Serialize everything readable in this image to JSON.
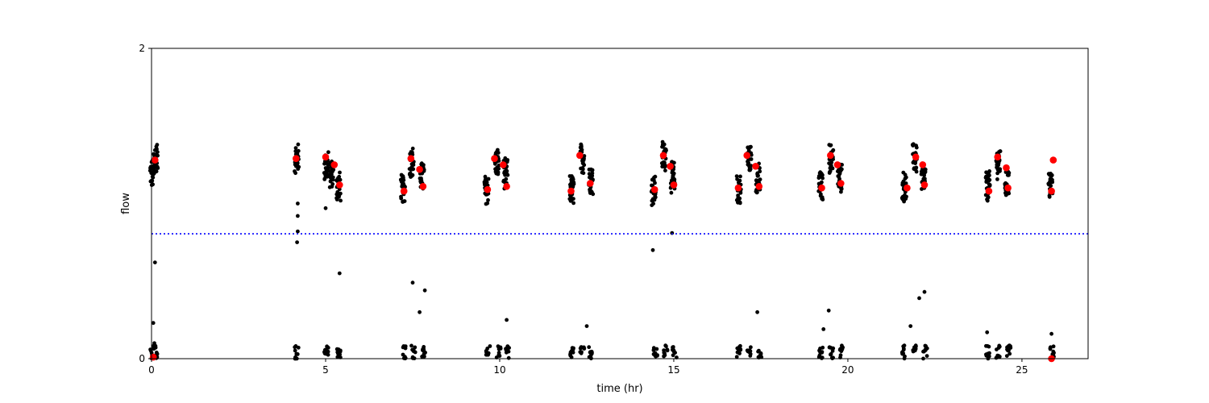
{
  "chart_data": {
    "type": "scatter",
    "title": "",
    "xlabel": "time (hr)",
    "ylabel": "flow",
    "xlim": [
      0,
      26.9
    ],
    "ylim": [
      0,
      2
    ],
    "x_ticks": [
      0,
      5,
      10,
      15,
      20,
      25
    ],
    "y_ticks": [
      0,
      2
    ],
    "grid": false,
    "threshold_line": {
      "y": 0.805,
      "color": "#0000ff",
      "style": "dotted"
    },
    "colors": {
      "samples": "#000000",
      "means": "#ff0000"
    },
    "series": [
      {
        "role": "samples",
        "bursts": [
          [
            0.0,
            1.2
          ],
          [
            0.1,
            1.3
          ],
          [
            4.15,
            1.3
          ],
          [
            5.0,
            1.25
          ],
          [
            5.15,
            1.2
          ],
          [
            5.35,
            1.12
          ],
          [
            7.2,
            1.1
          ],
          [
            7.45,
            1.28
          ],
          [
            7.75,
            1.18
          ],
          [
            9.6,
            1.1
          ],
          [
            9.9,
            1.27
          ],
          [
            10.15,
            1.2
          ],
          [
            12.05,
            1.1
          ],
          [
            12.35,
            1.3
          ],
          [
            12.6,
            1.17
          ],
          [
            14.4,
            1.1
          ],
          [
            14.7,
            1.32
          ],
          [
            14.95,
            1.18
          ],
          [
            16.85,
            1.1
          ],
          [
            17.15,
            1.3
          ],
          [
            17.4,
            1.17
          ],
          [
            19.2,
            1.12
          ],
          [
            19.5,
            1.3
          ],
          [
            19.75,
            1.18
          ],
          [
            21.6,
            1.12
          ],
          [
            21.9,
            1.3
          ],
          [
            22.15,
            1.17
          ],
          [
            24.0,
            1.12
          ],
          [
            24.3,
            1.27
          ],
          [
            24.55,
            1.15
          ],
          [
            25.8,
            1.13
          ]
        ],
        "low_clusters": [
          0.0,
          0.1,
          4.15,
          5.0,
          5.35,
          7.25,
          7.5,
          7.8,
          9.65,
          9.95,
          10.2,
          12.05,
          12.35,
          12.6,
          14.45,
          14.75,
          15.0,
          16.85,
          17.15,
          17.45,
          19.2,
          19.5,
          19.8,
          21.6,
          21.9,
          22.2,
          24.0,
          24.3,
          24.6,
          25.85
        ],
        "outliers": [
          [
            0.1,
            0.62
          ],
          [
            0.05,
            0.23
          ],
          [
            0.08,
            0.1
          ],
          [
            4.2,
            1.0
          ],
          [
            4.2,
            0.92
          ],
          [
            4.2,
            0.82
          ],
          [
            4.18,
            0.75
          ],
          [
            5.0,
            0.97
          ],
          [
            5.4,
            0.55
          ],
          [
            7.5,
            0.49
          ],
          [
            7.7,
            0.3
          ],
          [
            7.85,
            0.44
          ],
          [
            10.2,
            0.25
          ],
          [
            12.5,
            0.21
          ],
          [
            14.4,
            0.7
          ],
          [
            14.95,
            0.81
          ],
          [
            17.4,
            0.3
          ],
          [
            19.45,
            0.31
          ],
          [
            19.3,
            0.19
          ],
          [
            21.8,
            0.21
          ],
          [
            22.05,
            0.39
          ],
          [
            22.2,
            0.43
          ],
          [
            24.0,
            0.17
          ],
          [
            25.85,
            0.16
          ]
        ]
      },
      {
        "role": "means",
        "points": [
          [
            0.1,
            1.28
          ],
          [
            4.15,
            1.29
          ],
          [
            5.0,
            1.3
          ],
          [
            5.25,
            1.25
          ],
          [
            5.4,
            1.12
          ],
          [
            7.25,
            1.08
          ],
          [
            7.45,
            1.29
          ],
          [
            7.7,
            1.22
          ],
          [
            7.8,
            1.11
          ],
          [
            9.65,
            1.09
          ],
          [
            9.85,
            1.29
          ],
          [
            10.1,
            1.25
          ],
          [
            10.2,
            1.11
          ],
          [
            12.05,
            1.08
          ],
          [
            12.3,
            1.31
          ],
          [
            12.6,
            1.13
          ],
          [
            14.45,
            1.09
          ],
          [
            14.7,
            1.31
          ],
          [
            14.9,
            1.24
          ],
          [
            15.0,
            1.12
          ],
          [
            16.85,
            1.1
          ],
          [
            17.1,
            1.31
          ],
          [
            17.35,
            1.24
          ],
          [
            17.45,
            1.11
          ],
          [
            19.25,
            1.1
          ],
          [
            19.5,
            1.31
          ],
          [
            19.7,
            1.25
          ],
          [
            19.8,
            1.13
          ],
          [
            21.7,
            1.1
          ],
          [
            21.95,
            1.3
          ],
          [
            22.15,
            1.25
          ],
          [
            22.2,
            1.12
          ],
          [
            24.05,
            1.08
          ],
          [
            24.3,
            1.3
          ],
          [
            24.55,
            1.23
          ],
          [
            24.6,
            1.1
          ],
          [
            25.85,
            1.08
          ],
          [
            25.9,
            1.28
          ],
          [
            25.85,
            0.0
          ],
          [
            0.05,
            0.01
          ]
        ]
      }
    ]
  }
}
